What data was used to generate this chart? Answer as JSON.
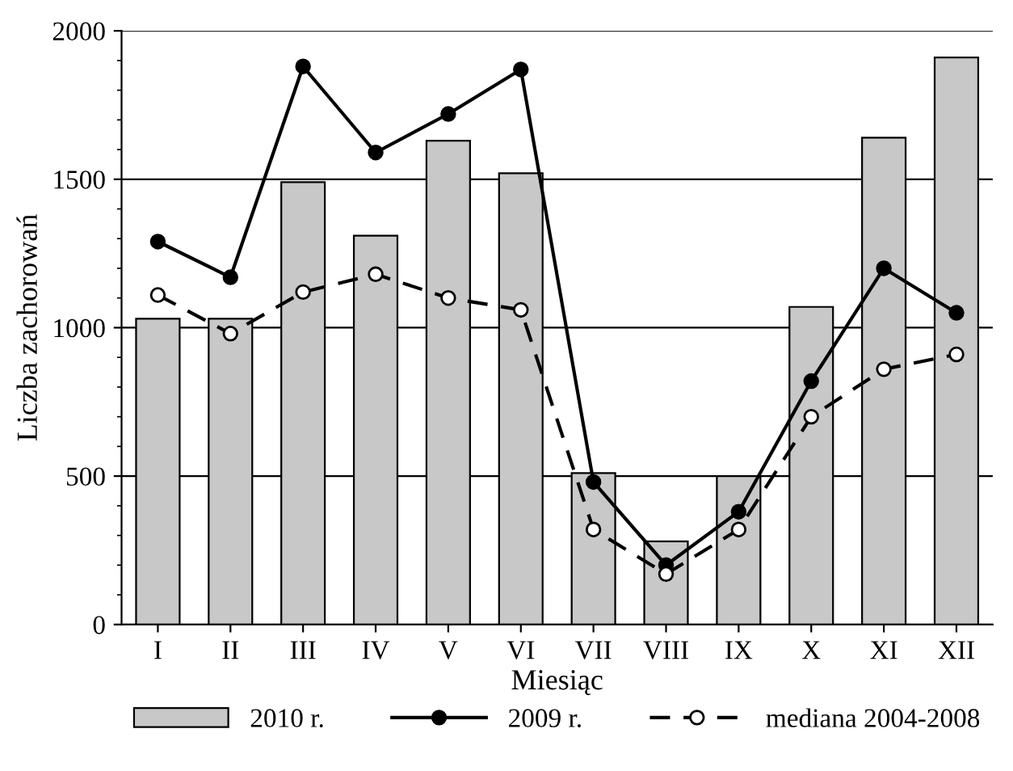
{
  "chart_data": {
    "type": "bar",
    "xlabel": "Miesiąc",
    "ylabel": "Liczba zachorowań",
    "categories": [
      "I",
      "II",
      "III",
      "IV",
      "V",
      "VI",
      "VII",
      "VIII",
      "IX",
      "X",
      "XI",
      "XII"
    ],
    "series": [
      {
        "name": "2010 r.",
        "color": "#c8c8c8",
        "values": [
          1030,
          1030,
          1490,
          1310,
          1630,
          1520,
          510,
          280,
          500,
          1070,
          1640,
          1910
        ]
      },
      {
        "name": "2009 r.",
        "type": "line",
        "color": "#000000",
        "marker": "circle",
        "line_style": "solid",
        "values": [
          1290,
          1170,
          1880,
          1590,
          1720,
          1870,
          480,
          200,
          380,
          820,
          1200,
          1050
        ]
      },
      {
        "name": "mediana 2004-2008",
        "type": "line",
        "color": "#000000",
        "marker": "circle",
        "line_style": "dashed",
        "values": [
          1110,
          980,
          1120,
          1180,
          1100,
          1060,
          320,
          170,
          320,
          700,
          860,
          910
        ]
      }
    ],
    "ylim": [
      0,
      2000
    ],
    "yticks": [
      0,
      500,
      1000,
      1500,
      2000
    ],
    "grid": "y",
    "legend": "bottom"
  }
}
